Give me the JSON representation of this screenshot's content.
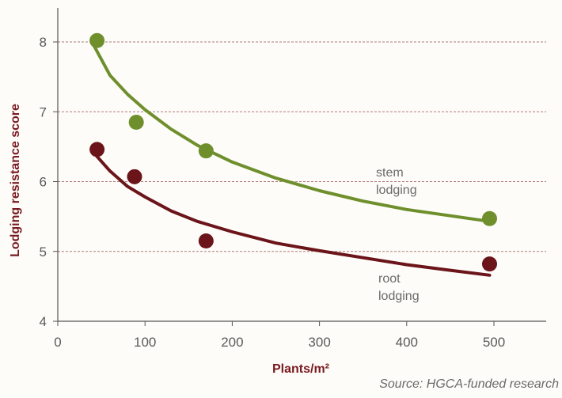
{
  "chart_data": {
    "type": "scatter",
    "xlabel": "Plants/m²",
    "ylabel": "Lodging resistance score",
    "xlim": [
      0,
      550
    ],
    "ylim": [
      4,
      8.5
    ],
    "xticks": [
      0,
      100,
      200,
      300,
      400,
      500
    ],
    "yticks": [
      4,
      5,
      6,
      7,
      8
    ],
    "grid": "horizontal dashed",
    "series": [
      {
        "name": "stem lodging",
        "label_lines": [
          "stem",
          "lodging"
        ],
        "color": "#6e8f2c",
        "points": [
          [
            45,
            8.02
          ],
          [
            90,
            6.85
          ],
          [
            170,
            6.44
          ],
          [
            495,
            5.47
          ]
        ],
        "trend_x": [
          40,
          60,
          80,
          100,
          130,
          160,
          200,
          250,
          300,
          350,
          400,
          450,
          495
        ],
        "trend_y": [
          7.98,
          7.52,
          7.25,
          7.03,
          6.75,
          6.52,
          6.28,
          6.05,
          5.87,
          5.72,
          5.6,
          5.51,
          5.43
        ]
      },
      {
        "name": "root lodging",
        "label_lines": [
          "root",
          "lodging"
        ],
        "color": "#6b1419",
        "points": [
          [
            45,
            6.46
          ],
          [
            88,
            6.07
          ],
          [
            170,
            5.15
          ],
          [
            495,
            4.82
          ]
        ],
        "trend_x": [
          40,
          60,
          80,
          100,
          130,
          160,
          200,
          250,
          300,
          350,
          400,
          450,
          495
        ],
        "trend_y": [
          6.43,
          6.15,
          5.93,
          5.78,
          5.58,
          5.43,
          5.28,
          5.12,
          5.01,
          4.91,
          4.81,
          4.73,
          4.66
        ]
      }
    ]
  },
  "source_text": "Source: HGCA-funded research"
}
